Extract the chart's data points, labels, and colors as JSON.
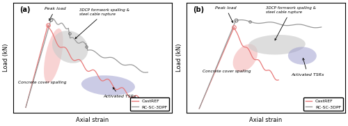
{
  "fig_width": 5.0,
  "fig_height": 1.81,
  "dpi": 100,
  "panel_a": {
    "label": "(a)",
    "xlabel": "Axial strain",
    "ylabel": "Load (kN)",
    "cast_color": "#e87878",
    "rc_color": "#999999",
    "peak_load_label": "Peak load",
    "formwork_label": "3DCP formwork spalling &\nsteel cable rupture",
    "activated_label": "Activated TSRs",
    "cover_label": "Concrete cover spalling",
    "legend_entries": [
      "CastREF",
      "RC-SC-3DPF"
    ]
  },
  "panel_b": {
    "label": "(b)",
    "xlabel": "Axial strain",
    "ylabel": "Load (kN)",
    "cast_color": "#e87878",
    "rc_color": "#999999",
    "peak_load_label": "Peak load",
    "formwork_label": "3DCP formwork spalling &\nsteel cable rupture",
    "activated_label": "Activated TSRs",
    "cover_label": "Concrete cover spalling",
    "legend_entries": [
      "CastREF",
      "RC-SC-3DPF"
    ]
  }
}
